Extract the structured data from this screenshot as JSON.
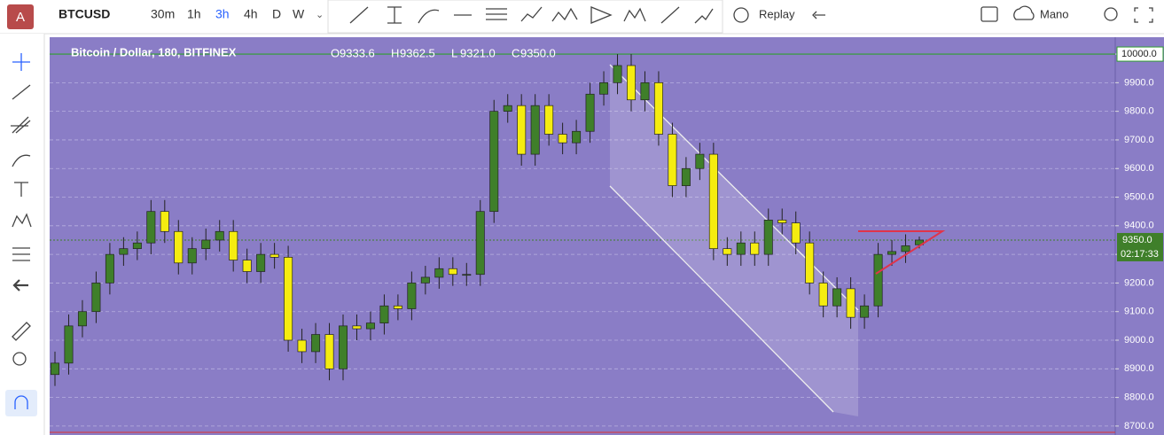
{
  "toolbar": {
    "avatar": "A",
    "symbol": "BTCUSD",
    "intervals": [
      "30m",
      "1h",
      "3h",
      "4h",
      "D",
      "W"
    ],
    "active_interval": 2,
    "replay": "Replay",
    "mode": "Mano"
  },
  "chart_data": {
    "type": "candlestick",
    "title": "Bitcoin / Dollar, 180, BITFINEX",
    "ohlc_legend": [
      {
        "key": "O",
        "text": "9333.6"
      },
      {
        "key": "H",
        "text": "9362.5"
      },
      {
        "key": "L",
        "text": "9321.0"
      },
      {
        "key": "C",
        "text": "9350.0"
      }
    ],
    "open": [
      8880,
      8920,
      9050,
      9100,
      9200,
      9300,
      9320,
      9340,
      9450,
      9380,
      9270,
      9320,
      9350,
      9380,
      9280,
      9240,
      9300,
      9290,
      9000,
      8960,
      9020,
      8900,
      9050,
      9040,
      9060,
      9120,
      9110,
      9200,
      9220,
      9250,
      9230,
      9230,
      9450,
      9800,
      9820,
      9650,
      9820,
      9720,
      9690,
      9730,
      9860,
      9900,
      9960,
      9840,
      9900,
      9720,
      9540,
      9600,
      9650,
      9320,
      9300,
      9340,
      9300,
      9420,
      9410,
      9340,
      9200,
      9120,
      9180,
      9080,
      9120,
      9300,
      9310,
      9333.6
    ],
    "high": [
      8960,
      9090,
      9140,
      9240,
      9340,
      9360,
      9380,
      9490,
      9490,
      9420,
      9360,
      9390,
      9420,
      9420,
      9320,
      9340,
      9340,
      9330,
      9040,
      9060,
      9060,
      9090,
      9090,
      9100,
      9160,
      9160,
      9240,
      9260,
      9290,
      9290,
      9270,
      9490,
      9840,
      9860,
      9860,
      9860,
      9860,
      9760,
      9770,
      9900,
      9940,
      10000,
      10000,
      9940,
      9940,
      9760,
      9640,
      9690,
      9690,
      9360,
      9380,
      9380,
      9460,
      9460,
      9450,
      9380,
      9240,
      9220,
      9220,
      9160,
      9340,
      9350,
      9370,
      9362.5
    ],
    "low": [
      8840,
      8880,
      9010,
      9060,
      9160,
      9260,
      9280,
      9300,
      9340,
      9230,
      9230,
      9280,
      9310,
      9240,
      9200,
      9200,
      9250,
      8960,
      8920,
      8920,
      8860,
      8860,
      9000,
      9000,
      9020,
      9070,
      9070,
      9160,
      9180,
      9190,
      9190,
      9190,
      9410,
      9760,
      9610,
      9610,
      9680,
      9650,
      9650,
      9690,
      9820,
      9860,
      9800,
      9800,
      9680,
      9500,
      9500,
      9560,
      9280,
      9260,
      9260,
      9260,
      9260,
      9370,
      9300,
      9160,
      9080,
      9080,
      9040,
      9040,
      9080,
      9260,
      9270,
      9321
    ],
    "close": [
      8920,
      9050,
      9100,
      9200,
      9300,
      9320,
      9340,
      9450,
      9380,
      9270,
      9320,
      9350,
      9380,
      9280,
      9240,
      9300,
      9290,
      9000,
      8960,
      9020,
      8900,
      9050,
      9040,
      9060,
      9120,
      9110,
      9200,
      9220,
      9250,
      9230,
      9230,
      9450,
      9800,
      9820,
      9650,
      9820,
      9720,
      9690,
      9730,
      9860,
      9900,
      9960,
      9840,
      9900,
      9720,
      9540,
      9600,
      9650,
      9320,
      9300,
      9340,
      9300,
      9420,
      9410,
      9340,
      9200,
      9120,
      9180,
      9080,
      9120,
      9300,
      9310,
      9330,
      9350
    ],
    "up_color": "#3f7f2a",
    "down_color": "#f5ec10",
    "ylim": [
      8678,
      10059
    ],
    "yticks": [
      {
        "value": 8700,
        "label": "8700.0"
      },
      {
        "value": 8800,
        "label": "8800.0"
      },
      {
        "value": 8900,
        "label": "8900.0"
      },
      {
        "value": 9000,
        "label": "9000.0"
      },
      {
        "value": 9100,
        "label": "9100.0"
      },
      {
        "value": 9200,
        "label": "9200.0"
      },
      {
        "value": 9300,
        "label": "9300.0"
      },
      {
        "value": 9400,
        "label": "9400.0"
      },
      {
        "value": 9500,
        "label": "9500.0"
      },
      {
        "value": 9600,
        "label": "9600.0"
      },
      {
        "value": 9700,
        "label": "9700.0"
      },
      {
        "value": 9800,
        "label": "9800.0"
      },
      {
        "value": 9900,
        "label": "9900.0"
      },
      {
        "value": 10000,
        "label": "10000.0"
      }
    ],
    "grid": true,
    "level_line": {
      "value": 10000,
      "label": "10000.0",
      "color": "#2e9e2e"
    },
    "last_price_label": "9350.0",
    "countdown": "02:17:33"
  }
}
